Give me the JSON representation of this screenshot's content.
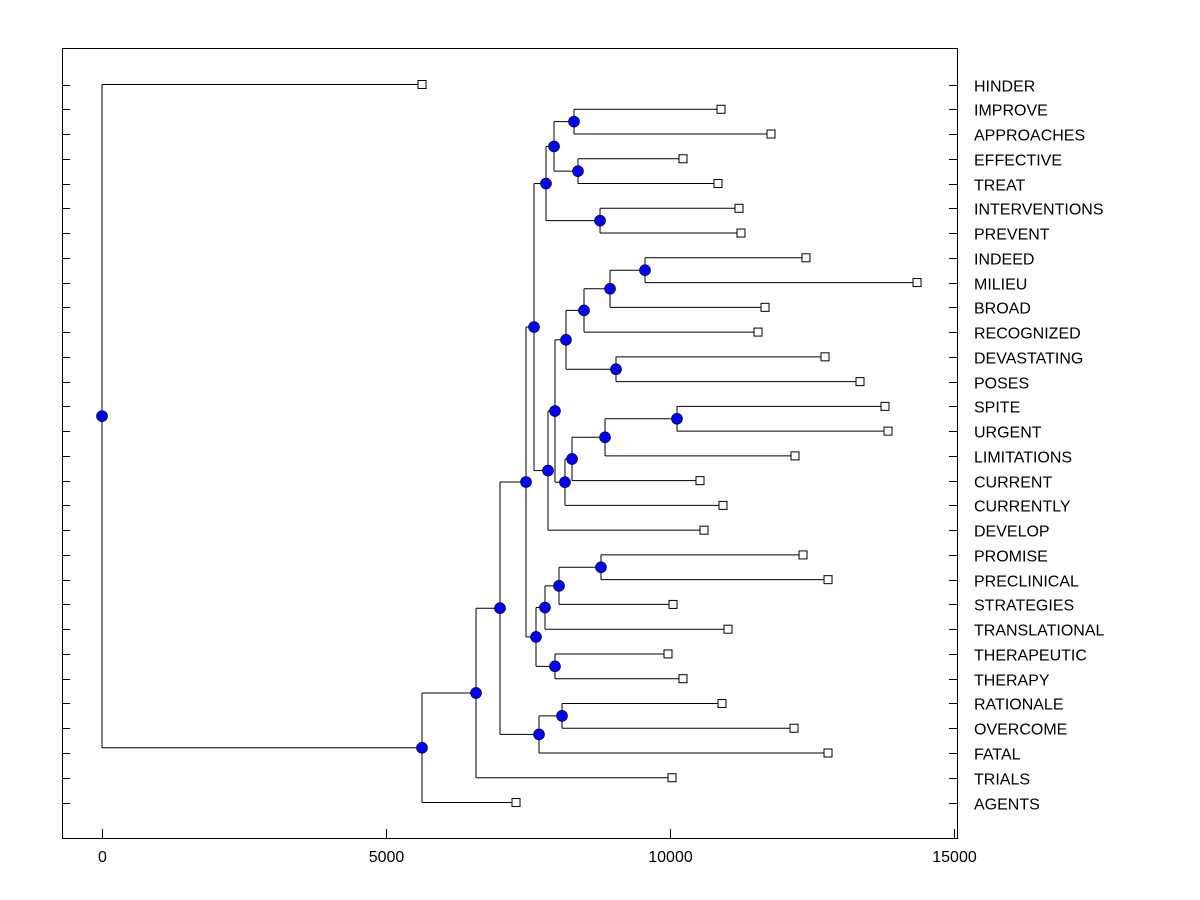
{
  "chart_data": {
    "type": "dendrogram",
    "xlim": [
      0,
      15000
    ],
    "x_ticks": [
      0,
      5000,
      10000,
      15000
    ],
    "x_tick_labels": [
      "0",
      "5000",
      "10000",
      "15000"
    ],
    "grid": false,
    "node_color": "#0000ff",
    "leaves": [
      "HINDER",
      "IMPROVE",
      "APPROACHES",
      "EFFECTIVE",
      "TREAT",
      "INTERVENTIONS",
      "PREVENT",
      "INDEED",
      "MILIEU",
      "BROAD",
      "RECOGNIZED",
      "DEVASTATING",
      "POSES",
      "SPITE",
      "URGENT",
      "LIMITATIONS",
      "CURRENT",
      "CURRENTLY",
      "DEVELOP",
      "PROMISE",
      "PRECLINICAL",
      "STRATEGIES",
      "TRANSLATIONAL",
      "THERAPEUTIC",
      "THERAPY",
      "RATIONALE",
      "OVERCOME",
      "FATAL",
      "TRIALS",
      "AGENTS"
    ],
    "leaf_values": [
      5634,
      10898,
      11778,
      10229,
      10845,
      11215,
      11250,
      12394,
      14349,
      11673,
      11549,
      12729,
      13345,
      13785,
      13838,
      12201,
      10528,
      10933,
      10599,
      12342,
      12782,
      10053,
      11021,
      9965,
      10229,
      10915,
      12183,
      12782,
      10035,
      7289
    ],
    "tree": {
      "value": 0,
      "children": [
        {
          "leaf": 0
        },
        {
          "value": 5634,
          "children": [
            {
              "value": 6585,
              "children": [
                {
                  "value": 7007,
                  "children": [
                    {
                      "value": 7465,
                      "children": [
                        {
                          "value": 7606,
                          "children": [
                            {
                              "value": 7817,
                              "children": [
                                {
                                  "value": 7958,
                                  "children": [
                                    {
                                      "value": 8310,
                                      "children": [
                                        {
                                          "leaf": 1
                                        },
                                        {
                                          "leaf": 2
                                        }
                                      ]
                                    },
                                    {
                                      "value": 8380,
                                      "children": [
                                        {
                                          "leaf": 3
                                        },
                                        {
                                          "leaf": 4
                                        }
                                      ]
                                    }
                                  ]
                                },
                                {
                                  "value": 8768,
                                  "children": [
                                    {
                                      "leaf": 5
                                    },
                                    {
                                      "leaf": 6
                                    }
                                  ]
                                }
                              ]
                            },
                            {
                              "value": 7852,
                              "children": [
                                {
                                  "value": 7975,
                                  "children": [
                                    {
                                      "value": 8169,
                                      "children": [
                                        {
                                          "value": 8486,
                                          "children": [
                                            {
                                              "value": 8944,
                                              "children": [
                                                {
                                                  "value": 9560,
                                                  "children": [
                                                    {
                                                      "leaf": 7
                                                    },
                                                    {
                                                      "leaf": 8
                                                    }
                                                  ]
                                                },
                                                {
                                                  "leaf": 9
                                                }
                                              ]
                                            },
                                            {
                                              "leaf": 10
                                            }
                                          ]
                                        },
                                        {
                                          "value": 9049,
                                          "children": [
                                            {
                                              "leaf": 11
                                            },
                                            {
                                              "leaf": 12
                                            }
                                          ]
                                        }
                                      ]
                                    },
                                    {
                                      "value": 8151,
                                      "children": [
                                        {
                                          "value": 8275,
                                          "children": [
                                            {
                                              "value": 8856,
                                              "children": [
                                                {
                                                  "value": 10123,
                                                  "children": [
                                                    {
                                                      "leaf": 13
                                                    },
                                                    {
                                                      "leaf": 14
                                                    }
                                                  ]
                                                },
                                                {
                                                  "leaf": 15
                                                }
                                              ]
                                            },
                                            {
                                              "leaf": 16
                                            }
                                          ]
                                        },
                                        {
                                          "leaf": 17
                                        }
                                      ]
                                    }
                                  ]
                                },
                                {
                                  "leaf": 18
                                }
                              ]
                            }
                          ]
                        },
                        {
                          "value": 7641,
                          "children": [
                            {
                              "value": 7799,
                              "children": [
                                {
                                  "value": 8046,
                                  "children": [
                                    {
                                      "value": 8785,
                                      "children": [
                                        {
                                          "leaf": 19
                                        },
                                        {
                                          "leaf": 20
                                        }
                                      ]
                                    },
                                    {
                                      "leaf": 21
                                    }
                                  ]
                                },
                                {
                                  "leaf": 22
                                }
                              ]
                            },
                            {
                              "value": 7975,
                              "children": [
                                {
                                  "leaf": 23
                                },
                                {
                                  "leaf": 24
                                }
                              ]
                            }
                          ]
                        }
                      ]
                    },
                    {
                      "value": 7694,
                      "children": [
                        {
                          "value": 8099,
                          "children": [
                            {
                              "leaf": 25
                            },
                            {
                              "leaf": 26
                            }
                          ]
                        },
                        {
                          "leaf": 27
                        }
                      ]
                    }
                  ]
                },
                {
                  "leaf": 28
                }
              ]
            },
            {
              "leaf": 29
            }
          ]
        }
      ]
    }
  }
}
